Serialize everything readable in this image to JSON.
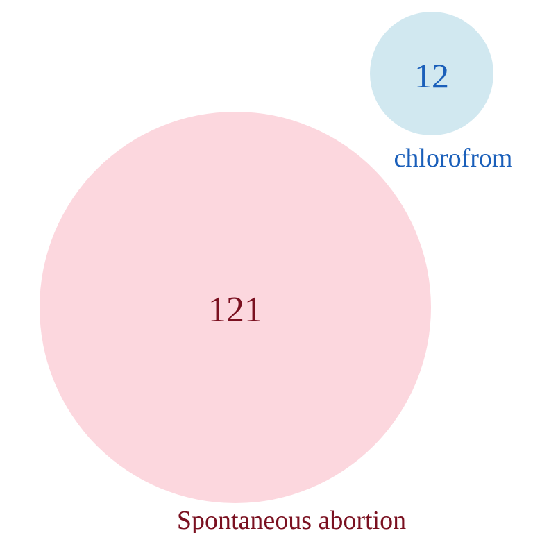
{
  "venn": {
    "sets": [
      {
        "label": "Spontaneous abortion",
        "count": "121",
        "fill_color": "#fcd7de",
        "text_color": "#7a1020"
      },
      {
        "label": "chlorofrom",
        "count": "12",
        "fill_color": "#d1e8f0",
        "text_color": "#1a5fba"
      }
    ]
  }
}
